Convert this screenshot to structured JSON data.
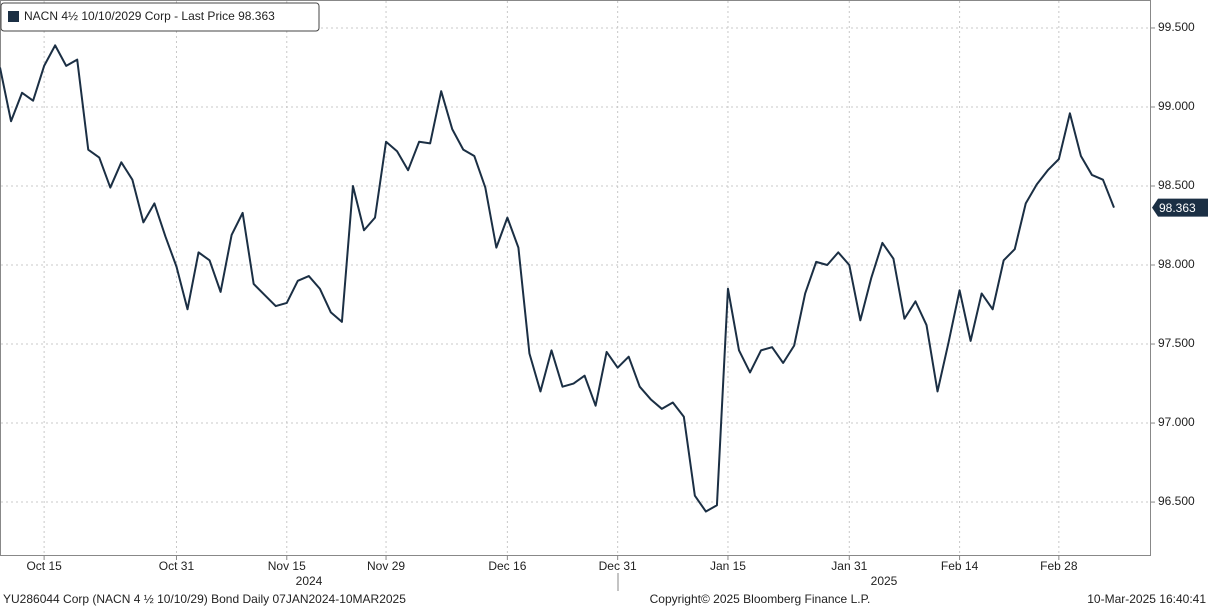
{
  "chart_data": {
    "type": "line",
    "legend": "NACN 4½ 10/10/2029 Corp - Last Price",
    "year_labels": [
      "2024",
      "2025"
    ],
    "footer_left": "YU286044 Corp (NACN 4 ½ 10/10/29) Bond  Daily 07JAN2024-10MAR2025",
    "footer_center": "Copyright© 2025 Bloomberg Finance L.P.",
    "footer_right": "10-Mar-2025 16:40:41",
    "categories": [
      null,
      null,
      null,
      null,
      "Oct 15",
      null,
      null,
      null,
      null,
      null,
      null,
      null,
      null,
      null,
      null,
      null,
      "Oct 31",
      null,
      null,
      null,
      null,
      null,
      null,
      null,
      null,
      null,
      "Nov 15",
      null,
      null,
      null,
      null,
      null,
      null,
      null,
      null,
      "Nov 29",
      null,
      null,
      null,
      null,
      null,
      null,
      null,
      null,
      null,
      null,
      "Dec 16",
      null,
      null,
      null,
      null,
      null,
      null,
      null,
      null,
      null,
      "Dec 31",
      null,
      null,
      null,
      null,
      null,
      null,
      null,
      null,
      null,
      "Jan 15",
      null,
      null,
      null,
      null,
      null,
      null,
      null,
      null,
      null,
      null,
      "Jan 31",
      null,
      null,
      null,
      null,
      null,
      null,
      null,
      null,
      null,
      "Feb 14",
      null,
      null,
      null,
      null,
      null,
      null,
      null,
      null,
      "Feb 28",
      null,
      null,
      null,
      null,
      null
    ],
    "series": [
      {
        "name": "NACN 4½ 10/10/2029 Corp - Last Price",
        "color": "#1b2f44",
        "values": [
          99.25,
          98.91,
          99.09,
          99.04,
          99.26,
          99.39,
          99.26,
          99.3,
          98.73,
          98.68,
          98.49,
          98.65,
          98.54,
          98.27,
          98.39,
          98.18,
          97.99,
          97.72,
          98.08,
          98.03,
          97.83,
          98.19,
          98.33,
          97.88,
          97.81,
          97.74,
          97.76,
          97.9,
          97.93,
          97.85,
          97.7,
          97.64,
          98.5,
          98.22,
          98.3,
          98.78,
          98.72,
          98.6,
          98.78,
          98.77,
          99.1,
          98.86,
          98.73,
          98.69,
          98.49,
          98.11,
          98.3,
          98.11,
          97.44,
          97.2,
          97.46,
          97.23,
          97.25,
          97.3,
          97.11,
          97.45,
          97.35,
          97.42,
          97.23,
          97.15,
          97.09,
          97.13,
          97.04,
          96.54,
          96.44,
          96.48,
          97.85,
          97.46,
          97.32,
          97.46,
          97.48,
          97.38,
          97.49,
          97.82,
          98.02,
          98.0,
          98.08,
          98.0,
          97.65,
          97.92,
          98.14,
          98.04,
          97.66,
          97.77,
          97.62,
          97.2,
          97.51,
          97.84,
          97.52,
          97.82,
          97.72,
          98.03,
          98.1,
          98.39,
          98.51,
          98.6,
          98.67,
          98.96,
          98.69,
          98.57,
          98.54,
          98.363
        ]
      }
    ],
    "ylim": [
      96.165,
      99.677
    ],
    "yticks": [
      {
        "value": 96.5,
        "label": "96.500"
      },
      {
        "value": 97,
        "label": "97.000"
      },
      {
        "value": 97.5,
        "label": "97.500"
      },
      {
        "value": 98,
        "label": "98.000"
      },
      {
        "value": 98.5,
        "label": "98.500"
      },
      {
        "value": 99,
        "label": "99.000"
      },
      {
        "value": 99.5,
        "label": "99.500"
      }
    ],
    "grid": true
  }
}
